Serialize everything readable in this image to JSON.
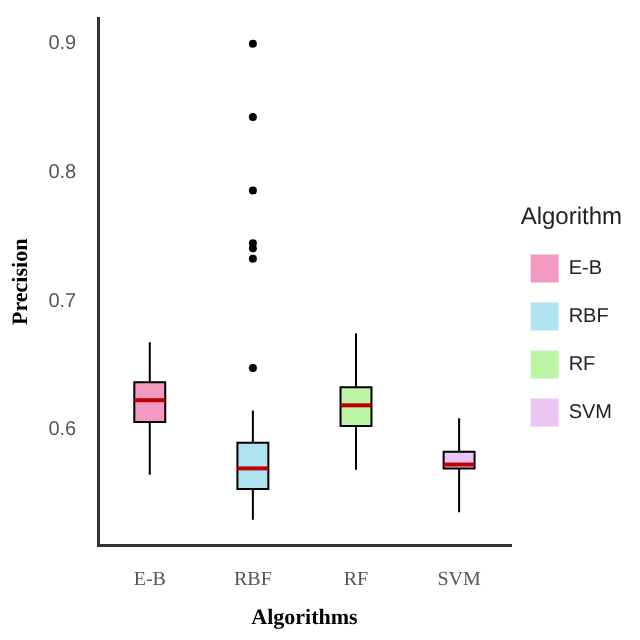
{
  "chart_data": {
    "type": "box",
    "xlabel": "Algorithms",
    "ylabel": "Precision",
    "legend_title": "Algorithm",
    "legend": "right",
    "grid": false,
    "categories": [
      "E-B",
      "RBF",
      "RF",
      "SVM"
    ],
    "series": [
      {
        "name": "E-B",
        "color": "#f49ac1",
        "boxes": [
          {
            "low": 0.565,
            "q1": 0.606,
            "median": 0.623,
            "q3": 0.637,
            "high": 0.668
          },
          null,
          null,
          null
        ]
      },
      {
        "name": "RBF",
        "color": "#aee3ef",
        "boxes": [
          null,
          {
            "low": 0.53,
            "q1": 0.554,
            "median": 0.57,
            "q3": 0.59,
            "high": 0.615,
            "outliers": [
              0.648,
              0.733,
              0.741,
              0.745,
              0.786,
              0.843,
              0.9
            ]
          },
          null,
          null
        ]
      },
      {
        "name": "RF",
        "color": "#bdf5a6",
        "boxes": [
          null,
          null,
          {
            "low": 0.569,
            "q1": 0.603,
            "median": 0.619,
            "q3": 0.633,
            "high": 0.675
          },
          null
        ]
      },
      {
        "name": "SVM",
        "color": "#ecc6f2",
        "boxes": [
          null,
          null,
          null,
          {
            "low": 0.536,
            "q1": 0.57,
            "median": 0.573,
            "q3": 0.583,
            "high": 0.609
          }
        ]
      }
    ],
    "ylim": [
      0.51,
      0.92
    ],
    "yticks": [
      0.6,
      0.7,
      0.8,
      0.9
    ]
  }
}
